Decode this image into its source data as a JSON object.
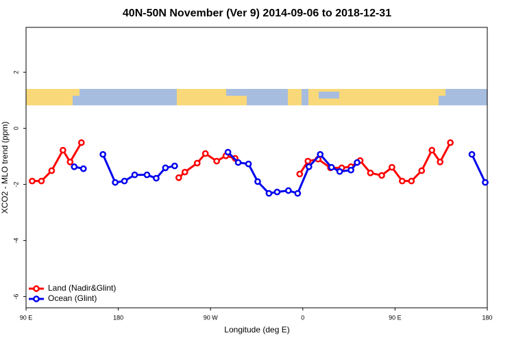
{
  "chart_data": {
    "type": "line",
    "title": "40N-50N November (Ver 9)   2014-09-06 to 2018-12-31",
    "xlabel": "Longitude (deg E)",
    "ylabel": "XCO2 - MLO trend (ppm)",
    "xlim": [
      90,
      540
    ],
    "xticks": [
      {
        "value": 90,
        "label": "90 E"
      },
      {
        "value": 180,
        "label": "180"
      },
      {
        "value": 270,
        "label": "90 W"
      },
      {
        "value": 360,
        "label": "0"
      },
      {
        "value": 450,
        "label": "90 E"
      },
      {
        "value": 540,
        "label": "180"
      }
    ],
    "ylim": [
      -6.4,
      3.6
    ],
    "yticks": [
      -6,
      -4,
      -2,
      0,
      2
    ],
    "legend": "bottomleft",
    "series": [
      {
        "name": "Land (Nadir&Glint)",
        "color": "#ff0000",
        "x": [
          96,
          105,
          115,
          126,
          133,
          144,
          null,
          239,
          245,
          257,
          265,
          276,
          285,
          294,
          null,
          357,
          365,
          375,
          387,
          398,
          407,
          416,
          426,
          437,
          447,
          457,
          466,
          476,
          486,
          494,
          504
        ],
        "values": [
          -1.88,
          -1.88,
          -1.51,
          -0.78,
          -1.2,
          -0.51,
          null,
          -1.76,
          -1.56,
          -1.24,
          -0.9,
          -1.17,
          -0.98,
          -1.07,
          null,
          -1.63,
          -1.17,
          -1.1,
          -1.41,
          -1.41,
          -1.37,
          -1.15,
          -1.59,
          -1.68,
          -1.39,
          -1.88,
          -1.88,
          -1.51,
          -0.78,
          -1.2,
          -0.51
        ]
      },
      {
        "name": "Ocean (Glint)",
        "color": "#0000ee",
        "x": [
          137,
          146,
          null,
          165,
          177,
          186,
          196,
          208,
          217,
          226,
          235,
          null,
          287,
          297,
          307,
          316,
          327,
          335,
          346,
          355,
          366,
          377,
          388,
          396,
          407,
          413,
          null,
          525,
          538
        ],
        "values": [
          -1.37,
          -1.44,
          null,
          -0.93,
          -1.93,
          -1.88,
          -1.66,
          -1.66,
          -1.78,
          -1.41,
          -1.34,
          null,
          -0.85,
          -1.22,
          -1.27,
          -1.9,
          -2.32,
          -2.27,
          -2.22,
          -2.32,
          -1.37,
          -0.93,
          -1.39,
          -1.54,
          -1.49,
          -1.22,
          null,
          -0.93,
          -1.93
        ]
      }
    ]
  }
}
